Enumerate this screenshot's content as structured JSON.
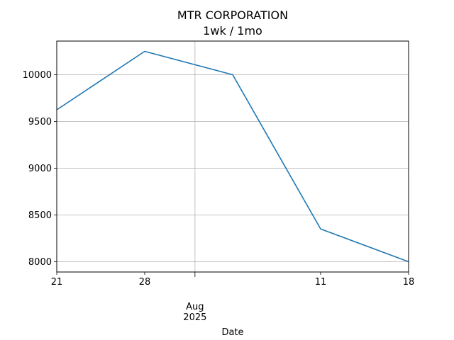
{
  "chart_data": {
    "type": "line",
    "title": "MTR CORPORATION",
    "subtitle": "1wk / 1mo",
    "xlabel": "Date",
    "ylabel": "",
    "x_tick_labels": [
      {
        "date": "2025-07-21",
        "label": "21"
      },
      {
        "date": "2025-07-28",
        "label": "28"
      },
      {
        "date": "2025-08-01",
        "label": "Aug",
        "sublabel": "2025"
      },
      {
        "date": "2025-08-11",
        "label": "11"
      },
      {
        "date": "2025-08-18",
        "label": "18"
      }
    ],
    "y_ticks": [
      8000,
      8500,
      9000,
      9500,
      10000
    ],
    "xlim": [
      "2025-07-21",
      "2025-08-18"
    ],
    "ylim": [
      7890,
      10360
    ],
    "grid": true,
    "line_color": "#1f77b4",
    "series": [
      {
        "x": [
          "2025-07-21",
          "2025-07-28",
          "2025-08-04",
          "2025-08-11",
          "2025-08-18"
        ],
        "values": [
          9625,
          10250,
          10000,
          8350,
          8000
        ]
      }
    ]
  }
}
